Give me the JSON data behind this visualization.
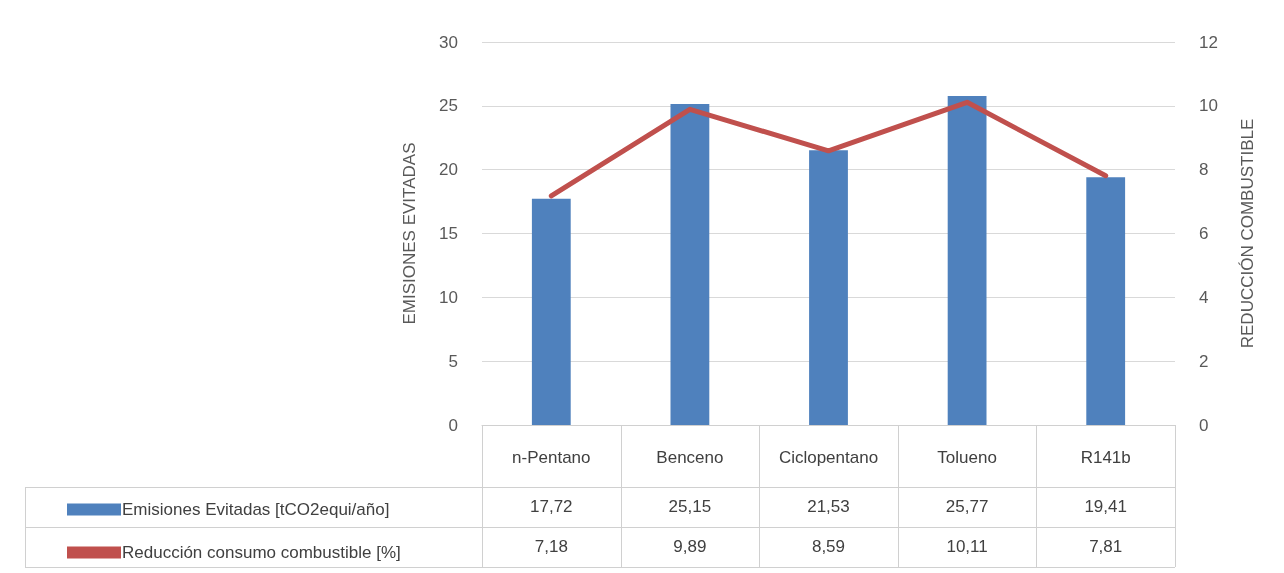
{
  "chart_data": {
    "type": "bar",
    "ylabel": "EMISIONES EVITADAS",
    "y2label": "REDUCCIÓN COMBUSTIBLE",
    "categories": [
      "n-Pentano",
      "Benceno",
      "Ciclopentano",
      "Tolueno",
      "R141b"
    ],
    "series": [
      {
        "name": "Emisiones Evitadas [tCO2equi/año]",
        "color": "#4f81bd",
        "values": [
          17.72,
          25.15,
          21.53,
          25.77,
          19.41
        ],
        "value_labels": [
          "17,72",
          "25,15",
          "21,53",
          "25,77",
          "19,41"
        ]
      },
      {
        "name": "Reducción consumo combustible [%]",
        "type": "line",
        "axis": "y2",
        "color": "#c0504d",
        "values": [
          7.18,
          9.89,
          8.59,
          10.11,
          7.81
        ],
        "value_labels": [
          "7,18",
          "9,89",
          "8,59",
          "10,11",
          "7,81"
        ],
        "marker": "none",
        "line_style": "solid"
      }
    ],
    "ylim": [
      0,
      30
    ],
    "yticks": [
      0,
      5,
      10,
      15,
      20,
      25,
      30
    ],
    "y2lim": [
      0,
      12
    ],
    "y2ticks": [
      0,
      2,
      4,
      6,
      8,
      10,
      12
    ],
    "grid": "y",
    "legend": "bottom left"
  }
}
